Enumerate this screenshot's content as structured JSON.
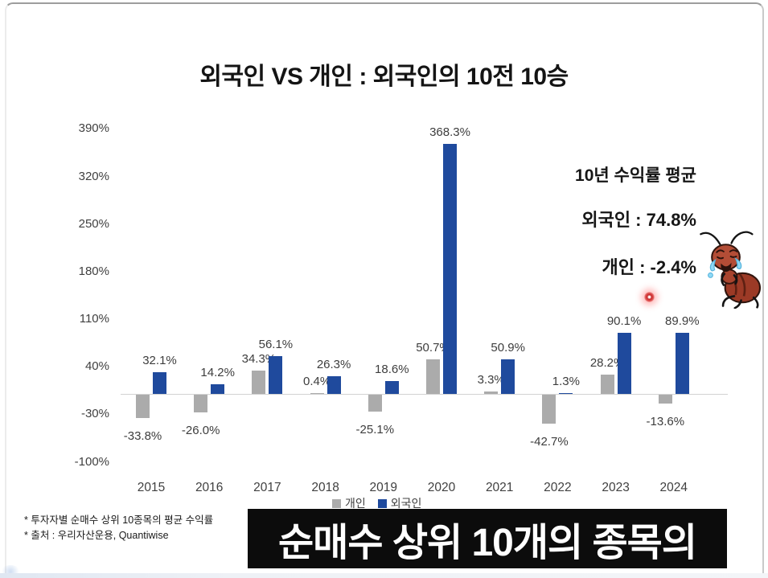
{
  "slide": {
    "avg_stats": {
      "heading": "10년 수익률 평균",
      "foreigner_line": "외국인 : 74.8%",
      "individual_line": "개인 : -2.4%"
    },
    "footnotes": {
      "line1": "* 투자자별 순매수 상위 10종목의 평균 수익률",
      "line2": "* 출처 : 우리자산운용, Quantiwise"
    },
    "caption_banner": "순매수 상위 10개의 종목의",
    "icons": {
      "crying_ant": "crying-ant-sticker",
      "laser_dot": "red-laser-pointer-dot"
    }
  },
  "chart_data": {
    "type": "bar",
    "title": "외국인 VS 개인 : 외국인의 10전 10승",
    "categories": [
      "2015",
      "2016",
      "2017",
      "2018",
      "2019",
      "2020",
      "2021",
      "2022",
      "2023",
      "2024"
    ],
    "series": [
      {
        "name": "개인",
        "color": "#ababab",
        "values": [
          -33.8,
          -26.0,
          34.3,
          0.4,
          -25.1,
          50.7,
          3.3,
          -42.7,
          28.2,
          -13.6
        ]
      },
      {
        "name": "외국인",
        "color": "#1f4a9d",
        "values": [
          32.1,
          14.2,
          56.1,
          26.3,
          18.6,
          368.3,
          50.9,
          1.3,
          90.1,
          89.9
        ]
      }
    ],
    "y_axis": {
      "ticks": [
        390,
        320,
        250,
        180,
        110,
        40,
        -30,
        -100
      ],
      "tick_suffix": "%",
      "ylim": [
        -100,
        390
      ]
    },
    "grid": false,
    "legend_position": "bottom",
    "data_label_suffix": "%",
    "data_label_decimals": 1
  }
}
